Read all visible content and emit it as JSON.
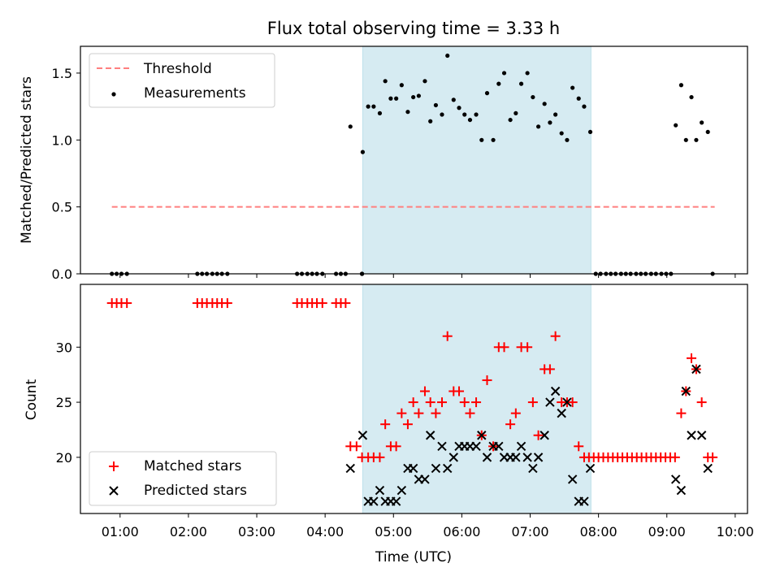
{
  "chart_data": [
    {
      "type": "scatter",
      "title": "Flux total observing time = 3.33 h",
      "xlabel": "",
      "ylabel": "Matched/Predicted stars",
      "x_ticks": [
        "01:00",
        "02:00",
        "03:00",
        "04:00",
        "05:00",
        "06:00",
        "07:00",
        "08:00",
        "09:00",
        "10:00"
      ],
      "x_tick_values": [
        1,
        2,
        3,
        4,
        5,
        6,
        7,
        8,
        9,
        10
      ],
      "xlim": [
        0.42,
        10.18
      ],
      "ylim": [
        0,
        1.7
      ],
      "y_ticks": [
        "0.0",
        "0.5",
        "1.0",
        "1.5"
      ],
      "y_tick_values": [
        0,
        0.5,
        1.0,
        1.5
      ],
      "shaded_x_range": [
        4.55,
        7.89
      ],
      "shade_color": "#add8e6",
      "legend": "top-left",
      "threshold": {
        "name": "Threshold",
        "y": 0.5,
        "x_range": [
          0.88,
          9.7
        ],
        "color": "#ff7f7f"
      },
      "measurements": {
        "name": "Measurements",
        "color": "#000000",
        "points": [
          [
            0.88,
            0
          ],
          [
            0.95,
            0
          ],
          [
            1.02,
            0
          ],
          [
            1.1,
            0
          ],
          [
            2.13,
            0
          ],
          [
            2.2,
            0
          ],
          [
            2.27,
            0
          ],
          [
            2.35,
            0
          ],
          [
            2.42,
            0
          ],
          [
            2.49,
            0
          ],
          [
            2.57,
            0
          ],
          [
            3.59,
            0
          ],
          [
            3.66,
            0
          ],
          [
            3.74,
            0
          ],
          [
            3.81,
            0
          ],
          [
            3.88,
            0
          ],
          [
            3.96,
            0
          ],
          [
            4.16,
            0
          ],
          [
            4.23,
            0
          ],
          [
            4.3,
            0
          ],
          [
            4.37,
            1.1
          ],
          [
            4.54,
            0
          ],
          [
            4.54,
            0
          ],
          [
            4.55,
            0.91
          ],
          [
            4.63,
            1.25
          ],
          [
            4.71,
            1.25
          ],
          [
            4.8,
            1.2
          ],
          [
            4.88,
            1.44
          ],
          [
            4.96,
            1.31
          ],
          [
            5.04,
            1.31
          ],
          [
            5.12,
            1.41
          ],
          [
            5.21,
            1.21
          ],
          [
            5.29,
            1.32
          ],
          [
            5.37,
            1.33
          ],
          [
            5.46,
            1.44
          ],
          [
            5.54,
            1.14
          ],
          [
            5.62,
            1.26
          ],
          [
            5.71,
            1.19
          ],
          [
            5.79,
            1.63
          ],
          [
            5.88,
            1.3
          ],
          [
            5.96,
            1.24
          ],
          [
            6.04,
            1.19
          ],
          [
            6.12,
            1.15
          ],
          [
            6.21,
            1.19
          ],
          [
            6.29,
            1.0
          ],
          [
            6.37,
            1.35
          ],
          [
            6.46,
            1.0
          ],
          [
            6.54,
            1.42
          ],
          [
            6.62,
            1.5
          ],
          [
            6.71,
            1.15
          ],
          [
            6.79,
            1.2
          ],
          [
            6.87,
            1.42
          ],
          [
            6.96,
            1.5
          ],
          [
            7.04,
            1.32
          ],
          [
            7.12,
            1.1
          ],
          [
            7.21,
            1.27
          ],
          [
            7.29,
            1.13
          ],
          [
            7.37,
            1.19
          ],
          [
            7.46,
            1.05
          ],
          [
            7.54,
            1.0
          ],
          [
            7.62,
            1.39
          ],
          [
            7.71,
            1.31
          ],
          [
            7.79,
            1.25
          ],
          [
            7.88,
            1.06
          ],
          [
            7.96,
            0
          ],
          [
            8.03,
            0
          ],
          [
            8.11,
            0
          ],
          [
            8.18,
            0
          ],
          [
            8.25,
            0
          ],
          [
            8.33,
            0
          ],
          [
            8.4,
            0
          ],
          [
            8.47,
            0
          ],
          [
            8.55,
            0
          ],
          [
            8.62,
            0
          ],
          [
            8.69,
            0
          ],
          [
            8.77,
            0
          ],
          [
            8.84,
            0
          ],
          [
            8.92,
            0
          ],
          [
            8.99,
            0
          ],
          [
            9.06,
            0
          ],
          [
            9.13,
            1.11
          ],
          [
            9.21,
            1.41
          ],
          [
            9.28,
            1.0
          ],
          [
            9.36,
            1.32
          ],
          [
            9.43,
            1.0
          ],
          [
            9.51,
            1.13
          ],
          [
            9.6,
            1.06
          ],
          [
            9.67,
            0
          ]
        ]
      }
    },
    {
      "type": "scatter",
      "title": "",
      "xlabel": "Time (UTC)",
      "ylabel": "Count",
      "x_ticks": [
        "01:00",
        "02:00",
        "03:00",
        "04:00",
        "05:00",
        "06:00",
        "07:00",
        "08:00",
        "09:00",
        "10:00"
      ],
      "x_tick_values": [
        1,
        2,
        3,
        4,
        5,
        6,
        7,
        8,
        9,
        10
      ],
      "xlim": [
        0.42,
        10.18
      ],
      "ylim": [
        14.9,
        35.7
      ],
      "y_ticks": [
        "20",
        "25",
        "30"
      ],
      "y_tick_values": [
        20,
        25,
        30
      ],
      "shaded_x_range": [
        4.55,
        7.89
      ],
      "shade_color": "#add8e6",
      "legend": "bottom-left",
      "series": [
        {
          "name": "Matched stars",
          "marker": "plus",
          "color": "#ff0000",
          "points": [
            [
              0.88,
              34
            ],
            [
              0.95,
              34
            ],
            [
              1.02,
              34
            ],
            [
              1.1,
              34
            ],
            [
              2.13,
              34
            ],
            [
              2.2,
              34
            ],
            [
              2.27,
              34
            ],
            [
              2.35,
              34
            ],
            [
              2.42,
              34
            ],
            [
              2.49,
              34
            ],
            [
              2.57,
              34
            ],
            [
              3.59,
              34
            ],
            [
              3.66,
              34
            ],
            [
              3.74,
              34
            ],
            [
              3.81,
              34
            ],
            [
              3.88,
              34
            ],
            [
              3.96,
              34
            ],
            [
              4.16,
              34
            ],
            [
              4.23,
              34
            ],
            [
              4.3,
              34
            ],
            [
              4.37,
              21
            ],
            [
              4.46,
              21
            ],
            [
              4.54,
              20
            ],
            [
              4.63,
              20
            ],
            [
              4.71,
              20
            ],
            [
              4.8,
              20
            ],
            [
              4.88,
              23
            ],
            [
              4.96,
              21
            ],
            [
              5.04,
              21
            ],
            [
              5.12,
              24
            ],
            [
              5.21,
              23
            ],
            [
              5.29,
              25
            ],
            [
              5.37,
              24
            ],
            [
              5.46,
              26
            ],
            [
              5.54,
              25
            ],
            [
              5.62,
              24
            ],
            [
              5.71,
              25
            ],
            [
              5.79,
              31
            ],
            [
              5.88,
              26
            ],
            [
              5.96,
              26
            ],
            [
              6.04,
              25
            ],
            [
              6.12,
              24
            ],
            [
              6.21,
              25
            ],
            [
              6.29,
              22
            ],
            [
              6.37,
              27
            ],
            [
              6.46,
              21
            ],
            [
              6.54,
              30
            ],
            [
              6.62,
              30
            ],
            [
              6.71,
              23
            ],
            [
              6.79,
              24
            ],
            [
              6.87,
              30
            ],
            [
              6.96,
              30
            ],
            [
              7.04,
              25
            ],
            [
              7.12,
              22
            ],
            [
              7.21,
              28
            ],
            [
              7.29,
              28
            ],
            [
              7.37,
              31
            ],
            [
              7.46,
              25
            ],
            [
              7.54,
              25
            ],
            [
              7.62,
              25
            ],
            [
              7.71,
              21
            ],
            [
              7.79,
              20
            ],
            [
              7.86,
              20
            ],
            [
              7.93,
              20
            ],
            [
              8.0,
              20
            ],
            [
              8.07,
              20
            ],
            [
              8.14,
              20
            ],
            [
              8.21,
              20
            ],
            [
              8.28,
              20
            ],
            [
              8.35,
              20
            ],
            [
              8.42,
              20
            ],
            [
              8.49,
              20
            ],
            [
              8.56,
              20
            ],
            [
              8.63,
              20
            ],
            [
              8.7,
              20
            ],
            [
              8.77,
              20
            ],
            [
              8.84,
              20
            ],
            [
              8.91,
              20
            ],
            [
              8.98,
              20
            ],
            [
              9.05,
              20
            ],
            [
              9.12,
              20
            ],
            [
              9.21,
              24
            ],
            [
              9.28,
              26
            ],
            [
              9.36,
              29
            ],
            [
              9.43,
              28
            ],
            [
              9.51,
              25
            ],
            [
              9.6,
              20
            ],
            [
              9.67,
              20
            ]
          ]
        },
        {
          "name": "Predicted stars",
          "marker": "x",
          "color": "#000000",
          "points": [
            [
              4.37,
              19
            ],
            [
              4.55,
              22
            ],
            [
              4.63,
              16
            ],
            [
              4.71,
              16
            ],
            [
              4.8,
              17
            ],
            [
              4.88,
              16
            ],
            [
              4.96,
              16
            ],
            [
              5.04,
              16
            ],
            [
              5.12,
              17
            ],
            [
              5.21,
              19
            ],
            [
              5.29,
              19
            ],
            [
              5.37,
              18
            ],
            [
              5.46,
              18
            ],
            [
              5.54,
              22
            ],
            [
              5.62,
              19
            ],
            [
              5.71,
              21
            ],
            [
              5.79,
              19
            ],
            [
              5.88,
              20
            ],
            [
              5.96,
              21
            ],
            [
              6.04,
              21
            ],
            [
              6.12,
              21
            ],
            [
              6.21,
              21
            ],
            [
              6.29,
              22
            ],
            [
              6.37,
              20
            ],
            [
              6.46,
              21
            ],
            [
              6.54,
              21
            ],
            [
              6.62,
              20
            ],
            [
              6.71,
              20
            ],
            [
              6.79,
              20
            ],
            [
              6.87,
              21
            ],
            [
              6.96,
              20
            ],
            [
              7.04,
              19
            ],
            [
              7.12,
              20
            ],
            [
              7.21,
              22
            ],
            [
              7.29,
              25
            ],
            [
              7.37,
              26
            ],
            [
              7.46,
              24
            ],
            [
              7.54,
              25
            ],
            [
              7.62,
              18
            ],
            [
              7.71,
              16
            ],
            [
              7.79,
              16
            ],
            [
              7.88,
              19
            ],
            [
              9.13,
              18
            ],
            [
              9.21,
              17
            ],
            [
              9.28,
              26
            ],
            [
              9.36,
              22
            ],
            [
              9.43,
              28
            ],
            [
              9.51,
              22
            ],
            [
              9.6,
              19
            ]
          ]
        }
      ]
    }
  ]
}
